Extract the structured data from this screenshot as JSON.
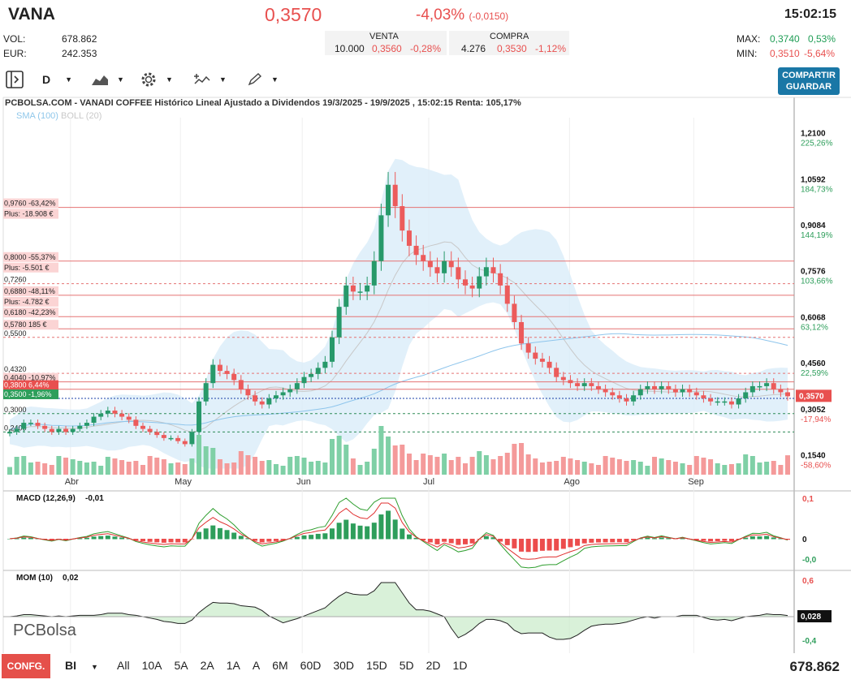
{
  "header": {
    "ticker": "VANA",
    "price": "0,3570",
    "change_pct": "-4,03%",
    "change_abs": "(-0,0150)",
    "time": "15:02:15",
    "vol_label": "VOL:",
    "vol_value": "678.862",
    "eur_label": "EUR:",
    "eur_value": "242.353",
    "venta_label": "VENTA",
    "venta_qty": "10.000",
    "venta_price": "0,3560",
    "venta_pct": "-0,28%",
    "compra_label": "COMPRA",
    "compra_qty": "4.276",
    "compra_price": "0,3530",
    "compra_pct": "-1,12%",
    "max_label": "MAX:",
    "max_price": "0,3740",
    "max_pct": "0,53%",
    "min_label": "MIN:",
    "min_price": "0,3510",
    "min_pct": "-5,64%"
  },
  "toolbar": {
    "period": "D",
    "share_line1": "COMPARTIR",
    "share_line2": "GUARDAR"
  },
  "chart_data": {
    "type": "candlestick",
    "title": "PCBOLSA.COM - VANADI COFFEE Histórico Lineal Ajustado a Dividendos 19/3/2025 - 19/9/2025 , 15:02:15 Renta: 105,17%",
    "indicators_legend": [
      "SMA (100)",
      "BOLL (20)"
    ],
    "x_labels": [
      "Abr",
      "May",
      "Jun",
      "Jul",
      "Ago",
      "Sep"
    ],
    "y_ticks": [
      {
        "v": 1.21,
        "label": "1,2100",
        "pct": "225,26%"
      },
      {
        "v": 1.0592,
        "label": "1,0592",
        "pct": "184,73%"
      },
      {
        "v": 0.9084,
        "label": "0,9084",
        "pct": "144,19%"
      },
      {
        "v": 0.7576,
        "label": "0,7576",
        "pct": "103,66%"
      },
      {
        "v": 0.6068,
        "label": "0,6068",
        "pct": "63,12%"
      },
      {
        "v": 0.456,
        "label": "0,4560",
        "pct": "22,59%"
      },
      {
        "v": 0.3052,
        "label": "0,3052",
        "pct": "-17,94%"
      },
      {
        "v": 0.154,
        "label": "0,1540",
        "pct": "-58,60%"
      }
    ],
    "last_price": {
      "v": 0.357,
      "label": "0,3570"
    },
    "left_levels": [
      {
        "v": 0.976,
        "line1": "0,9760  -63,42%",
        "line2": "Plus: -18.908 €",
        "style": "red"
      },
      {
        "v": 0.8,
        "line1": "0,8000  -55,37%",
        "line2": "Plus: -5.501 €",
        "style": "red"
      },
      {
        "v": 0.726,
        "line1": "0,7260",
        "style": "dash"
      },
      {
        "v": 0.688,
        "line1": "0,6880  -48,11%",
        "line2": "Plus: -4.782 €",
        "style": "red"
      },
      {
        "v": 0.618,
        "line1": "0,6180  -42,23%",
        "style": "red"
      },
      {
        "v": 0.578,
        "line1": "0,5780  185 €",
        "style": "red"
      },
      {
        "v": 0.55,
        "line1": "0,5500",
        "style": "dash"
      },
      {
        "v": 0.432,
        "line1": "0,4320",
        "style": "dash"
      },
      {
        "v": 0.404,
        "line1": "0,4040  -10,97%",
        "style": "red"
      },
      {
        "v": 0.38,
        "line1": "0,3800  6,44%",
        "style": "redfill"
      },
      {
        "v": 0.35,
        "line1": "0,3500  -1,96%",
        "style": "greenfill"
      },
      {
        "v": 0.3,
        "line1": "0,3000",
        "style": "gdash"
      },
      {
        "v": 0.24,
        "line1": "0,2400",
        "style": "gdash"
      }
    ],
    "close_values": [
      0.24,
      0.25,
      0.27,
      0.27,
      0.26,
      0.25,
      0.24,
      0.25,
      0.24,
      0.25,
      0.26,
      0.27,
      0.29,
      0.3,
      0.31,
      0.3,
      0.29,
      0.28,
      0.26,
      0.25,
      0.24,
      0.23,
      0.22,
      0.22,
      0.21,
      0.2,
      0.24,
      0.34,
      0.4,
      0.46,
      0.44,
      0.43,
      0.41,
      0.38,
      0.36,
      0.34,
      0.33,
      0.35,
      0.36,
      0.37,
      0.38,
      0.4,
      0.42,
      0.43,
      0.45,
      0.47,
      0.55,
      0.65,
      0.72,
      0.7,
      0.7,
      0.72,
      0.8,
      0.95,
      1.05,
      0.98,
      0.9,
      0.85,
      0.82,
      0.8,
      0.78,
      0.76,
      0.8,
      0.78,
      0.74,
      0.72,
      0.71,
      0.75,
      0.78,
      0.76,
      0.72,
      0.66,
      0.6,
      0.53,
      0.5,
      0.48,
      0.47,
      0.45,
      0.42,
      0.41,
      0.4,
      0.39,
      0.4,
      0.39,
      0.38,
      0.37,
      0.36,
      0.35,
      0.34,
      0.36,
      0.38,
      0.39,
      0.38,
      0.39,
      0.38,
      0.37,
      0.38,
      0.37,
      0.36,
      0.35,
      0.34,
      0.34,
      0.34,
      0.33,
      0.35,
      0.37,
      0.39,
      0.39,
      0.4,
      0.38,
      0.37,
      0.357
    ],
    "macd": {
      "label": "MACD (12,26,9)",
      "value": "-0,01",
      "y_ticks": [
        "0,1",
        "0",
        "-0,0"
      ]
    },
    "mom": {
      "label": "MOM (10)",
      "value": "0,02",
      "y_ticks": [
        "0,6",
        "-0,4"
      ],
      "last": "0,028"
    },
    "logo": "PCBolsa"
  },
  "footer": {
    "conf": "CONFG.",
    "mode": "BI",
    "ranges": [
      "All",
      "10A",
      "5A",
      "2A",
      "1A",
      "A",
      "6M",
      "60D",
      "30D",
      "15D",
      "5D",
      "2D",
      "1D"
    ],
    "volume": "678.862"
  }
}
